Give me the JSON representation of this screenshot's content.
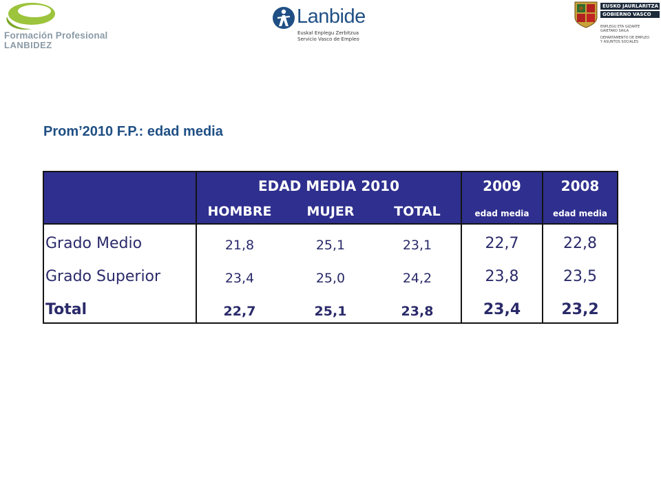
{
  "logos": {
    "formacion": {
      "line1": "Formación Profesional",
      "line2": "LANBIDEZ",
      "icon": "green-leaf-logo"
    },
    "lanbide": {
      "name": "Lanbide",
      "sub1": "Euskal Enplegu Zerbitzua",
      "sub2": "Servicio Vasco de Empleo",
      "icon": "lanbide-figure-logo"
    },
    "gobierno": {
      "line1": "EUSKO JAURLARITZA",
      "line2": "GOBIERNO VASCO",
      "dept1a": "ENPLEGU ETA GIZARTE",
      "dept1b": "GAIETAKO SAILA",
      "dept2a": "DEPARTAMENTO DE EMPLEO",
      "dept2b": "Y ASUNTOS SOCIALES",
      "icon": "basque-coat-of-arms"
    }
  },
  "title": "Prom’2010 F.P.: edad media",
  "table": {
    "group_header": "EDAD MEDIA 2010",
    "sub_headers": [
      "HOMBRE",
      "MUJER",
      "TOTAL"
    ],
    "year_headers": [
      "2009",
      "2008"
    ],
    "year_subheaders": [
      "edad media",
      "edad media"
    ],
    "rows": [
      {
        "label": "Grado Medio",
        "hombre": "21,8",
        "mujer": "25,1",
        "total": "23,1",
        "y2009": "22,7",
        "y2008": "22,8",
        "bold": false
      },
      {
        "label": "Grado Superior",
        "hombre": "23,4",
        "mujer": "25,0",
        "total": "24,2",
        "y2009": "23,8",
        "y2008": "23,5",
        "bold": false
      },
      {
        "label": "Total",
        "hombre": "22,7",
        "mujer": "25,1",
        "total": "23,8",
        "y2009": "23,4",
        "y2008": "23,2",
        "bold": true
      }
    ]
  },
  "colors": {
    "header_bg": "#2e2f8e",
    "title": "#1f4f84",
    "cell_text": "#2a2a6a"
  }
}
